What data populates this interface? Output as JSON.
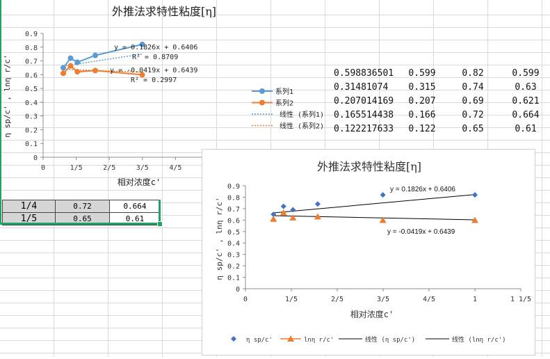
{
  "sheet": {
    "rows": [
      [
        "0.598836501",
        "0.599",
        "0.82",
        "0.599"
      ],
      [
        "0.31481074",
        "0.315",
        "0.74",
        "0.63"
      ],
      [
        "0.207014169",
        "0.207",
        "0.69",
        "0.621"
      ],
      [
        "0.165514438",
        "0.166",
        "0.72",
        "0.664"
      ],
      [
        "0.122217633",
        "0.122",
        "0.65",
        "0.61"
      ]
    ],
    "selected_rows": [
      [
        "1/4",
        "0.72",
        "0.664"
      ],
      [
        "1/5",
        "0.65",
        "0.61"
      ]
    ],
    "colors": {
      "selection": "#21a366"
    }
  },
  "chart_data": [
    {
      "type": "scatter",
      "title": "外推法求特性粘度[η]",
      "xlabel": "相对浓度c'",
      "ylabel": "η sp/c' , lnη r/c'",
      "xlim": [
        0,
        1
      ],
      "ylim": [
        0,
        0.9
      ],
      "x_tick_labels": [
        "0",
        "1/5",
        "2/5",
        "3/5",
        "4/5"
      ],
      "y_tick_labels": [
        "0",
        "0.1",
        "0.2",
        "0.3",
        "0.4",
        "0.5",
        "0.6",
        "0.7",
        "0.8",
        "0.9"
      ],
      "series": [
        {
          "name": "系列1",
          "color": "#5b9bd5",
          "marker": "circle",
          "line": "solid",
          "x": [
            0.122,
            0.166,
            0.207,
            0.315,
            0.599
          ],
          "y": [
            0.65,
            0.72,
            0.69,
            0.74,
            0.82
          ]
        },
        {
          "name": "系列2",
          "color": "#ed7d31",
          "marker": "circle",
          "line": "solid",
          "x": [
            0.122,
            0.166,
            0.207,
            0.315,
            0.599
          ],
          "y": [
            0.61,
            0.664,
            0.621,
            0.63,
            0.599
          ]
        }
      ],
      "trendlines": [
        {
          "name": "线性 (系列1)",
          "color": "#5b9bd5",
          "slope": 0.1826,
          "intercept": 0.6406,
          "equation": "y = 0.1826x + 0.6406",
          "r2": "R² = 0.8709"
        },
        {
          "name": "线性 (系列2)",
          "color": "#ed7d31",
          "slope": -0.0419,
          "intercept": 0.6439,
          "equation": "y = -0.0419x + 0.6439",
          "r2": "R² = 0.2997"
        }
      ],
      "legend": "right"
    },
    {
      "type": "scatter",
      "title": "外推法求特性粘度[η]",
      "xlabel": "相对浓度c'",
      "ylabel": "η sp/c' , lnη r/c'",
      "xlim": [
        0,
        1.2
      ],
      "ylim": [
        0,
        0.9
      ],
      "x_tick_labels": [
        "0",
        "1/5",
        "2/5",
        "3/5",
        "4/5",
        "1",
        "1 1/5"
      ],
      "y_tick_labels": [
        "0",
        "0.1",
        "0.2",
        "0.3",
        "0.4",
        "0.5",
        "0.6",
        "0.7",
        "0.8",
        "0.9"
      ],
      "series": [
        {
          "name": "η sp/c'",
          "color": "#4472c4",
          "marker": "diamond",
          "x": [
            0.122,
            0.166,
            0.207,
            0.315,
            0.599,
            1
          ],
          "y": [
            0.65,
            0.72,
            0.69,
            0.74,
            0.82,
            0.82
          ]
        },
        {
          "name": "lnη r/c'",
          "color": "#ed7d31",
          "marker": "triangle",
          "x": [
            0.122,
            0.166,
            0.207,
            0.315,
            0.599,
            1
          ],
          "y": [
            0.61,
            0.664,
            0.621,
            0.63,
            0.599,
            0.599
          ]
        }
      ],
      "trendlines": [
        {
          "name": "线性 (η sp/c')",
          "color": "#000000",
          "slope": 0.1826,
          "intercept": 0.6406,
          "equation": "y = 0.1826x + 0.6406"
        },
        {
          "name": "线性 (lnη r/c')",
          "color": "#000000",
          "slope": -0.0419,
          "intercept": 0.6439,
          "equation": "y = -0.0419x + 0.6439"
        }
      ],
      "legend": "bottom"
    }
  ]
}
